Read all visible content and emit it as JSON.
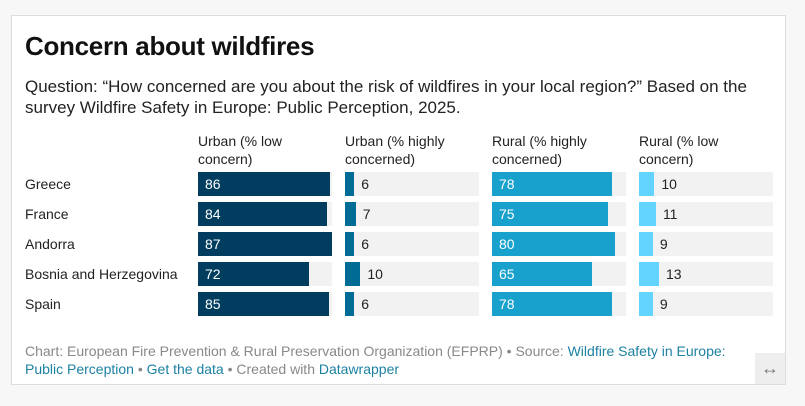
{
  "chart_data": {
    "type": "bar",
    "title": "Concern about wildfires",
    "subtitle": "Question: “How concerned are you about the risk of wildfires in your local region?” Based on the survey Wildfire Safety in Europe: Public Perception, 2025.",
    "categories": [
      "Greece",
      "France",
      "Andorra",
      "Bosnia and Herzegovina",
      "Spain"
    ],
    "series": [
      {
        "name": "Urban (% low concern)",
        "values": [
          86,
          84,
          87,
          72,
          85
        ],
        "color": "#003d5f",
        "label_inside": true
      },
      {
        "name": "Urban (% highly concerned)",
        "values": [
          6,
          7,
          6,
          10,
          6
        ],
        "color": "#006c95",
        "label_inside": false
      },
      {
        "name": "Rural (% highly concerned)",
        "values": [
          78,
          75,
          80,
          65,
          78
        ],
        "color": "#18a1cd",
        "label_inside": true
      },
      {
        "name": "Rural (% low concern)",
        "values": [
          10,
          11,
          9,
          13,
          9
        ],
        "color": "#63d4ff",
        "label_inside": false
      }
    ],
    "xlim": [
      0,
      87
    ],
    "background_color": "#f2f2f2"
  },
  "footer": {
    "chart_by": "Chart: European Fire Prevention & Rural Preservation Organization (EFPRP) • Source: ",
    "source_link": "Wildfire Safety in Europe: Public Perception",
    "sep1": " • ",
    "get_data": "Get the data",
    "sep2": " • Created with ",
    "datawrapper": "Datawrapper"
  },
  "resize_icon": "↔"
}
